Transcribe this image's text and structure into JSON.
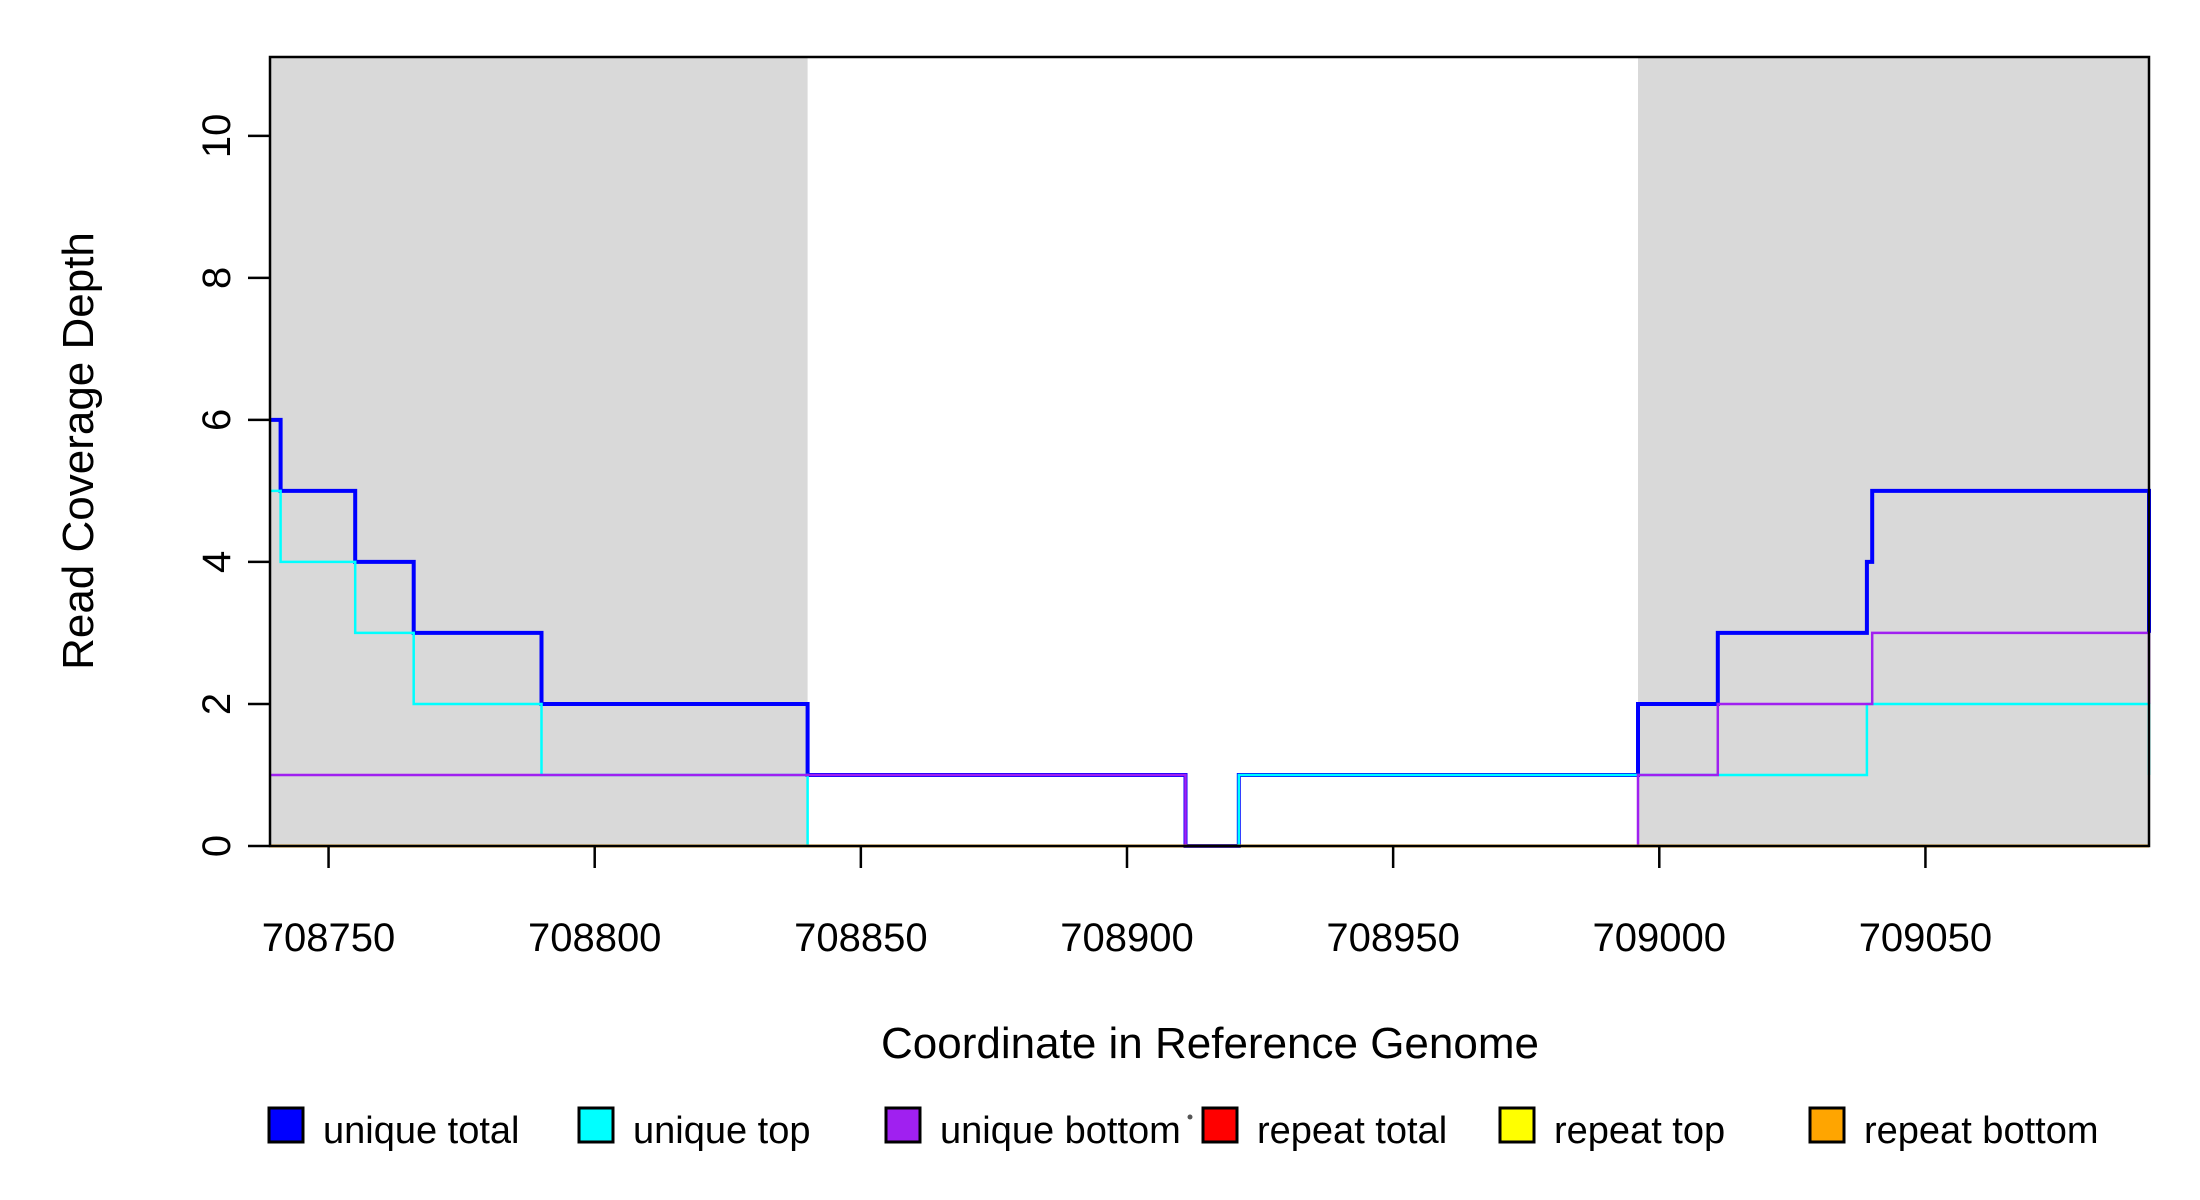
{
  "chart_data": {
    "type": "line",
    "style": "step-after",
    "title": "",
    "xlabel": "Coordinate in Reference Genome",
    "ylabel": "Read Coverage Depth",
    "xlim": [
      708739,
      709092
    ],
    "ylim": [
      0,
      11.11
    ],
    "x_ticks": [
      708750,
      708800,
      708850,
      708900,
      708950,
      709000,
      709050
    ],
    "y_ticks": [
      0,
      2,
      4,
      6,
      8,
      10
    ],
    "grid": false,
    "background_color": "#ffffff",
    "frame_color": "#000000",
    "shaded_regions": [
      {
        "name": "left-repeat-panel",
        "x0": 708739,
        "x1": 708840,
        "color": "#d9d9d9"
      },
      {
        "name": "right-repeat-panel",
        "x0": 708996,
        "x1": 709092,
        "color": "#d9d9d9"
      }
    ],
    "series": [
      {
        "name": "unique total",
        "color": "#0000ff",
        "width": 4,
        "steps": [
          [
            708739,
            6
          ],
          [
            708741,
            5
          ],
          [
            708755,
            4
          ],
          [
            708766,
            3
          ],
          [
            708790,
            2
          ],
          [
            708840,
            1
          ],
          [
            708911,
            0
          ],
          [
            708921,
            1
          ],
          [
            708996,
            2
          ],
          [
            709011,
            3
          ],
          [
            709039,
            4
          ],
          [
            709040,
            5
          ]
        ],
        "end_drop": [
          709092,
          3
        ]
      },
      {
        "name": "unique top",
        "color": "#00ffff",
        "width": 2.5,
        "steps": [
          [
            708739,
            5
          ],
          [
            708741,
            4
          ],
          [
            708755,
            3
          ],
          [
            708766,
            2
          ],
          [
            708790,
            1
          ],
          [
            708840,
            0
          ],
          [
            708921,
            1
          ],
          [
            709039,
            2
          ]
        ],
        "end_drop": [
          709092,
          1
        ]
      },
      {
        "name": "unique bottom",
        "color": "#a020f0",
        "width": 2.5,
        "steps": [
          [
            708739,
            1
          ],
          [
            708911,
            0
          ],
          [
            708996,
            1
          ],
          [
            709011,
            2
          ],
          [
            709040,
            3
          ]
        ],
        "end_drop": [
          709092,
          2
        ]
      },
      {
        "name": "repeat total",
        "color": "#ff0000",
        "width": 2,
        "steps": [
          [
            708739,
            0
          ]
        ],
        "end_drop": null
      },
      {
        "name": "repeat top",
        "color": "#ffff00",
        "width": 2,
        "steps": [
          [
            708739,
            0
          ]
        ],
        "end_drop": null
      },
      {
        "name": "repeat bottom",
        "color": "#ffa500",
        "width": 3,
        "steps": [
          [
            708739,
            0
          ]
        ],
        "end_drop": null
      }
    ],
    "legend": {
      "position": "bottom",
      "items": [
        {
          "label": "unique total",
          "color": "#0000ff"
        },
        {
          "label": "unique top",
          "color": "#00ffff"
        },
        {
          "label": "unique bottom",
          "color": "#a020f0"
        },
        {
          "label": "repeat total",
          "color": "#ff0000"
        },
        {
          "label": "repeat top",
          "color": "#ffff00"
        },
        {
          "label": "repeat bottom",
          "color": "#ffa500"
        }
      ]
    }
  }
}
